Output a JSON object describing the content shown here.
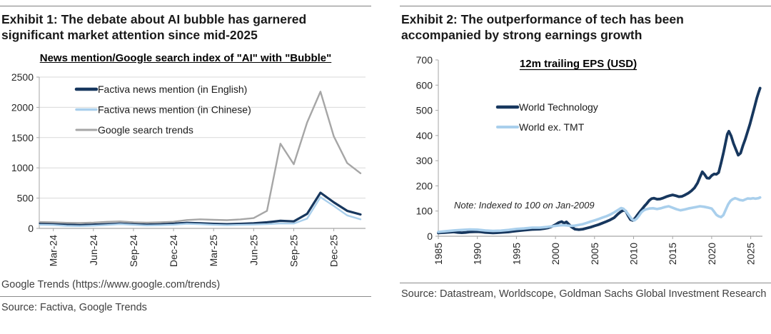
{
  "exhibit1": {
    "title": "Exhibit 1: The debate about AI bubble has garnered significant market attention since mid-2025",
    "chart_title": "News mention/Google search index of \"AI\" with \"Bubble\"",
    "footnote": "Google Trends (https://www.google.com/trends)",
    "source": "Source: Factiva, Google Trends"
  },
  "exhibit2": {
    "title": "Exhibit 2: The outperformance of tech has been accompanied by strong earnings growth",
    "source": "Source: Datastream, Worldscope, Goldman Sachs Global Investment Research"
  },
  "colors": {
    "navy": "#17375e",
    "light_blue": "#a9cfec",
    "gray": "#a6a6a6",
    "gridline": "#d9d9d9",
    "axis": "#a6a6a6",
    "tick_text": "#262626",
    "source_text": "#3f3f3f"
  },
  "chart_data": [
    {
      "type": "line",
      "title": "News mention/Google search index of \"AI\" with \"Bubble\"",
      "x_unit": "month",
      "categories": [
        "Feb-24",
        "Mar-24",
        "Apr-24",
        "May-24",
        "Jun-24",
        "Jul-24",
        "Aug-24",
        "Sep-24",
        "Oct-24",
        "Nov-24",
        "Dec-24",
        "Jan-25",
        "Feb-25",
        "Mar-25",
        "Apr-25",
        "May-25",
        "Jun-25",
        "Jul-25",
        "Aug-25",
        "Sep-25",
        "Oct-25",
        "Nov-25",
        "Dec-25",
        "Jan-26",
        "Feb-26"
      ],
      "series": [
        {
          "name": "Factiva news mention (in English)",
          "color": "#17375e",
          "values": [
            85,
            75,
            62,
            55,
            62,
            70,
            78,
            70,
            62,
            68,
            78,
            92,
            85,
            75,
            70,
            75,
            85,
            100,
            125,
            115,
            240,
            590,
            430,
            290,
            230
          ]
        },
        {
          "name": "Factiva news mention (in Chinese)",
          "color": "#a9cfec",
          "values": [
            60,
            55,
            42,
            38,
            45,
            55,
            70,
            58,
            48,
            52,
            60,
            75,
            68,
            58,
            52,
            58,
            62,
            70,
            82,
            80,
            160,
            515,
            370,
            215,
            150
          ]
        },
        {
          "name": "Google search trends",
          "color": "#a6a6a6",
          "values": [
            105,
            100,
            92,
            88,
            96,
            108,
            115,
            102,
            96,
            100,
            110,
            138,
            150,
            142,
            136,
            148,
            170,
            290,
            1400,
            1060,
            1750,
            2260,
            1520,
            1080,
            910
          ]
        }
      ],
      "ylim": [
        0,
        2500
      ],
      "yticks": [
        0,
        500,
        1000,
        1500,
        2000,
        2500
      ],
      "xtick_indices": [
        1,
        4,
        7,
        10,
        13,
        16,
        19,
        22
      ],
      "xtick_labels": [
        "Mar-24",
        "Jun-24",
        "Sep-24",
        "Dec-24",
        "Mar-25",
        "Jun-25",
        "Sep-25",
        "Dec-25"
      ],
      "grid": true,
      "legend_position": "inside-top-left"
    },
    {
      "type": "line",
      "title": "12m trailing EPS (USD)",
      "note": "Note: Indexed to 100 on Jan-2009",
      "xlim": [
        1985,
        2026.5
      ],
      "ylim": [
        0,
        700
      ],
      "yticks": [
        0,
        100,
        200,
        300,
        400,
        500,
        600,
        700
      ],
      "xticks": [
        1985,
        1990,
        1995,
        2000,
        2005,
        2010,
        2015,
        2020,
        2025
      ],
      "grid": false,
      "legend_position": "inside-top",
      "series": [
        {
          "name": "World Technology",
          "color": "#17375e",
          "points": [
            [
              1985,
              13
            ],
            [
              1986,
              15
            ],
            [
              1986.5,
              16
            ],
            [
              1987,
              17
            ],
            [
              1987.5,
              15
            ],
            [
              1988,
              14
            ],
            [
              1988.5,
              15
            ],
            [
              1989,
              17
            ],
            [
              1990,
              18
            ],
            [
              1990.5,
              17
            ],
            [
              1991,
              15
            ],
            [
              1992,
              13
            ],
            [
              1992.5,
              14
            ],
            [
              1993,
              15
            ],
            [
              1994,
              17
            ],
            [
              1994.5,
              19
            ],
            [
              1995,
              21
            ],
            [
              1996,
              24
            ],
            [
              1997,
              27
            ],
            [
              1998,
              28
            ],
            [
              1998.5,
              30
            ],
            [
              1999,
              33
            ],
            [
              1999.5,
              38
            ],
            [
              2000,
              46
            ],
            [
              2000.4,
              54
            ],
            [
              2000.8,
              58
            ],
            [
              2001.1,
              52
            ],
            [
              2001.4,
              57
            ],
            [
              2001.7,
              48
            ],
            [
              2002,
              38
            ],
            [
              2002.5,
              28
            ],
            [
              2003,
              26
            ],
            [
              2003.5,
              28
            ],
            [
              2004,
              32
            ],
            [
              2004.5,
              36
            ],
            [
              2005,
              41
            ],
            [
              2005.5,
              46
            ],
            [
              2006,
              52
            ],
            [
              2006.5,
              58
            ],
            [
              2007,
              65
            ],
            [
              2007.5,
              73
            ],
            [
              2008,
              88
            ],
            [
              2008.4,
              98
            ],
            [
              2008.7,
              103
            ],
            [
              2009,
              100
            ],
            [
              2009.3,
              82
            ],
            [
              2009.6,
              66
            ],
            [
              2009.9,
              63
            ],
            [
              2010.2,
              72
            ],
            [
              2010.5,
              85
            ],
            [
              2010.8,
              97
            ],
            [
              2011.1,
              108
            ],
            [
              2011.4,
              120
            ],
            [
              2011.7,
              130
            ],
            [
              2012,
              142
            ],
            [
              2012.3,
              149
            ],
            [
              2012.6,
              151
            ],
            [
              2013,
              147
            ],
            [
              2013.4,
              148
            ],
            [
              2013.8,
              152
            ],
            [
              2014.2,
              157
            ],
            [
              2014.6,
              161
            ],
            [
              2015,
              164
            ],
            [
              2015.4,
              161
            ],
            [
              2015.8,
              157
            ],
            [
              2016.2,
              158
            ],
            [
              2016.6,
              164
            ],
            [
              2017,
              171
            ],
            [
              2017.4,
              180
            ],
            [
              2017.8,
              192
            ],
            [
              2018.2,
              212
            ],
            [
              2018.5,
              235
            ],
            [
              2018.8,
              256
            ],
            [
              2019.1,
              245
            ],
            [
              2019.4,
              231
            ],
            [
              2019.7,
              230
            ],
            [
              2020,
              241
            ],
            [
              2020.3,
              247
            ],
            [
              2020.6,
              246
            ],
            [
              2020.9,
              253
            ],
            [
              2021.2,
              290
            ],
            [
              2021.5,
              330
            ],
            [
              2021.8,
              375
            ],
            [
              2022,
              405
            ],
            [
              2022.2,
              417
            ],
            [
              2022.5,
              398
            ],
            [
              2022.8,
              368
            ],
            [
              2023.1,
              345
            ],
            [
              2023.4,
              322
            ],
            [
              2023.7,
              330
            ],
            [
              2024,
              360
            ],
            [
              2024.3,
              385
            ],
            [
              2024.6,
              415
            ],
            [
              2024.9,
              445
            ],
            [
              2025.2,
              480
            ],
            [
              2025.5,
              515
            ],
            [
              2025.8,
              550
            ],
            [
              2026,
              570
            ],
            [
              2026.2,
              588
            ]
          ]
        },
        {
          "name": "World ex. TMT",
          "color": "#a9cfec",
          "points": [
            [
              1985,
              17
            ],
            [
              1986,
              20
            ],
            [
              1987,
              23
            ],
            [
              1987.5,
              24
            ],
            [
              1988,
              25
            ],
            [
              1989,
              27
            ],
            [
              1990,
              26
            ],
            [
              1991,
              23
            ],
            [
              1992,
              21
            ],
            [
              1993,
              22
            ],
            [
              1994,
              25
            ],
            [
              1995,
              29
            ],
            [
              1996,
              31
            ],
            [
              1997,
              34
            ],
            [
              1998,
              34
            ],
            [
              1999,
              37
            ],
            [
              2000,
              41
            ],
            [
              2000.5,
              43
            ],
            [
              2001,
              44
            ],
            [
              2002,
              41
            ],
            [
              2002.5,
              42
            ],
            [
              2003,
              45
            ],
            [
              2003.5,
              48
            ],
            [
              2004,
              53
            ],
            [
              2004.5,
              58
            ],
            [
              2005,
              63
            ],
            [
              2005.5,
              68
            ],
            [
              2006,
              74
            ],
            [
              2006.5,
              79
            ],
            [
              2007,
              86
            ],
            [
              2007.5,
              94
            ],
            [
              2008,
              104
            ],
            [
              2008.4,
              112
            ],
            [
              2008.7,
              109
            ],
            [
              2009,
              100
            ],
            [
              2009.4,
              84
            ],
            [
              2009.8,
              67
            ],
            [
              2010.1,
              63
            ],
            [
              2010.4,
              70
            ],
            [
              2010.7,
              82
            ],
            [
              2011,
              95
            ],
            [
              2011.3,
              103
            ],
            [
              2011.6,
              107
            ],
            [
              2012,
              110
            ],
            [
              2012.5,
              111
            ],
            [
              2013,
              108
            ],
            [
              2013.5,
              111
            ],
            [
              2014,
              116
            ],
            [
              2014.5,
              119
            ],
            [
              2015,
              113
            ],
            [
              2015.5,
              107
            ],
            [
              2016,
              103
            ],
            [
              2016.5,
              106
            ],
            [
              2017,
              110
            ],
            [
              2017.5,
              113
            ],
            [
              2018,
              116
            ],
            [
              2018.5,
              119
            ],
            [
              2019,
              117
            ],
            [
              2019.5,
              114
            ],
            [
              2020,
              110
            ],
            [
              2020.3,
              98
            ],
            [
              2020.6,
              85
            ],
            [
              2020.9,
              79
            ],
            [
              2021.2,
              76
            ],
            [
              2021.5,
              84
            ],
            [
              2021.8,
              105
            ],
            [
              2022.1,
              126
            ],
            [
              2022.4,
              140
            ],
            [
              2022.7,
              147
            ],
            [
              2023,
              151
            ],
            [
              2023.3,
              148
            ],
            [
              2023.6,
              144
            ],
            [
              2024,
              142
            ],
            [
              2024.3,
              146
            ],
            [
              2024.6,
              150
            ],
            [
              2025,
              149
            ],
            [
              2025.3,
              151
            ],
            [
              2025.6,
              149
            ],
            [
              2026,
              151
            ],
            [
              2026.2,
              154
            ]
          ]
        }
      ]
    }
  ]
}
